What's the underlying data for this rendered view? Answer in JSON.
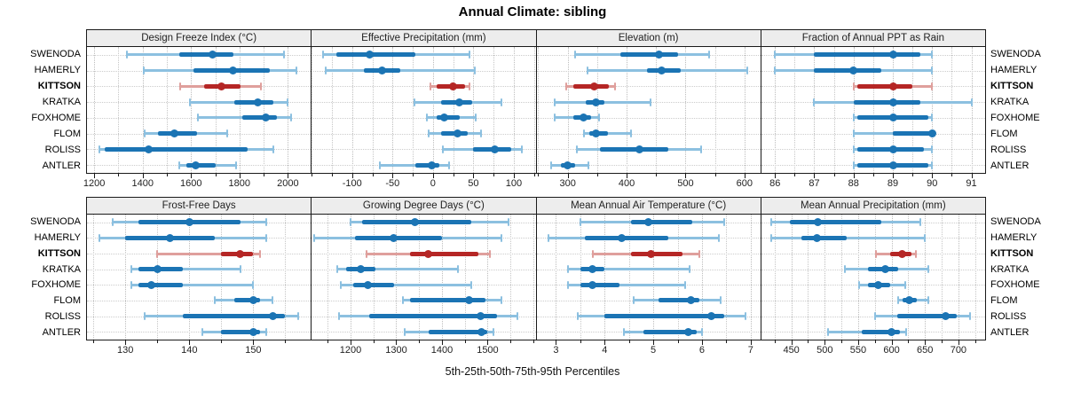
{
  "title": "Annual Climate: sibling",
  "caption": "5th-25th-50th-75th-95th Percentiles",
  "stations": [
    "SWENODA",
    "HAMERLY",
    "KITTSON",
    "KRATKA",
    "FOXHOME",
    "FLOM",
    "ROLISS",
    "ANTLER"
  ],
  "highlighted_station": "KITTSON",
  "colors": {
    "series_normal": "#1b74b4",
    "series_normal_light": "#8cc0e0",
    "series_highlight": "#b52625",
    "series_highlight_light": "#df9f9c",
    "panel_header_bg": "#ededed",
    "panel_border": "#1a1a1a",
    "gridline": "#c6c6c6"
  },
  "chart_data": [
    {
      "type": "scatter",
      "variant": "dot-whisker-percentiles",
      "row": 1,
      "title": "Design Freeze Index (°C)",
      "xlim": [
        1170,
        2095
      ],
      "major_ticks": [
        1200,
        1400,
        1600,
        1800,
        2000
      ],
      "minor_step": 100,
      "percentiles": [
        "5th",
        "25th",
        "50th",
        "75th",
        "95th"
      ],
      "series": [
        {
          "station": "SWENODA",
          "values": [
            1335,
            1550,
            1690,
            1775,
            1985
          ]
        },
        {
          "station": "HAMERLY",
          "values": [
            1405,
            1610,
            1775,
            1925,
            2035
          ]
        },
        {
          "station": "KITTSON",
          "values": [
            1555,
            1655,
            1725,
            1805,
            1890
          ]
        },
        {
          "station": "KRATKA",
          "values": [
            1595,
            1780,
            1875,
            1940,
            2000
          ]
        },
        {
          "station": "FOXHOME",
          "values": [
            1630,
            1810,
            1910,
            1955,
            2015
          ]
        },
        {
          "station": "FLOM",
          "values": [
            1410,
            1465,
            1530,
            1625,
            1750
          ]
        },
        {
          "station": "ROLISS",
          "values": [
            1222,
            1245,
            1425,
            1832,
            1940
          ]
        },
        {
          "station": "ANTLER",
          "values": [
            1550,
            1580,
            1620,
            1700,
            1785
          ]
        }
      ]
    },
    {
      "type": "scatter",
      "variant": "dot-whisker-percentiles",
      "row": 1,
      "title": "Effective Precipitation (mm)",
      "xlim": [
        -150,
        127
      ],
      "major_ticks": [
        -100,
        -50,
        0,
        50,
        100
      ],
      "minor_step": 25,
      "percentiles": [
        "5th",
        "25th",
        "50th",
        "75th",
        "95th"
      ],
      "series": [
        {
          "station": "SWENODA",
          "values": [
            -136,
            -120,
            -78,
            -22,
            45
          ]
        },
        {
          "station": "HAMERLY",
          "values": [
            -133,
            -85,
            -63,
            -40,
            52
          ]
        },
        {
          "station": "KITTSON",
          "values": [
            -3,
            5,
            25,
            40,
            45
          ]
        },
        {
          "station": "KRATKA",
          "values": [
            -23,
            10,
            33,
            48,
            85
          ]
        },
        {
          "station": "FOXHOME",
          "values": [
            -7,
            5,
            14,
            33,
            53
          ]
        },
        {
          "station": "FLOM",
          "values": [
            -5,
            10,
            30,
            43,
            60
          ]
        },
        {
          "station": "ROLISS",
          "values": [
            12,
            50,
            77,
            97,
            110
          ]
        },
        {
          "station": "ANTLER",
          "values": [
            -66,
            -22,
            -2,
            8,
            20
          ]
        }
      ]
    },
    {
      "type": "scatter",
      "variant": "dot-whisker-percentiles",
      "row": 1,
      "title": "Elevation (m)",
      "xlim": [
        247,
        627
      ],
      "major_ticks": [
        300,
        400,
        500,
        600
      ],
      "minor_step": 50,
      "percentiles": [
        "5th",
        "25th",
        "50th",
        "75th",
        "95th"
      ],
      "series": [
        {
          "station": "SWENODA",
          "values": [
            312,
            390,
            455,
            487,
            540
          ]
        },
        {
          "station": "HAMERLY",
          "values": [
            333,
            435,
            460,
            492,
            605
          ]
        },
        {
          "station": "KITTSON",
          "values": [
            297,
            310,
            345,
            370,
            381
          ]
        },
        {
          "station": "KRATKA",
          "values": [
            278,
            330,
            348,
            362,
            440
          ]
        },
        {
          "station": "FOXHOME",
          "values": [
            278,
            310,
            327,
            340,
            353
          ]
        },
        {
          "station": "FLOM",
          "values": [
            327,
            337,
            348,
            368,
            408
          ]
        },
        {
          "station": "ROLISS",
          "values": [
            315,
            355,
            422,
            470,
            527
          ]
        },
        {
          "station": "ANTLER",
          "values": [
            272,
            288,
            300,
            313,
            335
          ]
        }
      ]
    },
    {
      "type": "scatter",
      "variant": "dot-whisker-percentiles",
      "row": 1,
      "title": "Fraction of Annual PPT as Rain",
      "xlim": [
        85.65,
        91.35
      ],
      "major_ticks": [
        86,
        87,
        88,
        89,
        90,
        91
      ],
      "minor_step": 0.5,
      "percentiles": [
        "5th",
        "25th",
        "50th",
        "75th",
        "95th"
      ],
      "series": [
        {
          "station": "SWENODA",
          "values": [
            86,
            87,
            89,
            89.7,
            90
          ]
        },
        {
          "station": "HAMERLY",
          "values": [
            86,
            87,
            88,
            88.7,
            90
          ]
        },
        {
          "station": "KITTSON",
          "values": [
            88,
            88.1,
            89,
            89.5,
            90
          ]
        },
        {
          "station": "KRATKA",
          "values": [
            87,
            88,
            89,
            89.7,
            91
          ]
        },
        {
          "station": "FOXHOME",
          "values": [
            88,
            88.1,
            89,
            89.9,
            90
          ]
        },
        {
          "station": "FLOM",
          "values": [
            88,
            89,
            90,
            90,
            90
          ]
        },
        {
          "station": "ROLISS",
          "values": [
            88,
            88.1,
            89,
            89.8,
            90
          ]
        },
        {
          "station": "ANTLER",
          "values": [
            88,
            88.1,
            89,
            89.9,
            90
          ]
        }
      ]
    },
    {
      "type": "scatter",
      "variant": "dot-whisker-percentiles",
      "row": 2,
      "title": "Frost-Free Days",
      "xlim": [
        124,
        159
      ],
      "major_ticks": [
        130,
        140,
        150
      ],
      "minor_step": 5,
      "percentiles": [
        "5th",
        "25th",
        "50th",
        "75th",
        "95th"
      ],
      "series": [
        {
          "station": "SWENODA",
          "values": [
            128,
            132,
            140,
            148,
            152
          ]
        },
        {
          "station": "HAMERLY",
          "values": [
            126,
            130,
            137,
            144,
            152
          ]
        },
        {
          "station": "KITTSON",
          "values": [
            135,
            145,
            148,
            150,
            151
          ]
        },
        {
          "station": "KRATKA",
          "values": [
            131,
            132,
            135,
            139,
            148
          ]
        },
        {
          "station": "FOXHOME",
          "values": [
            131,
            132,
            134,
            139,
            150
          ]
        },
        {
          "station": "FLOM",
          "values": [
            144,
            147,
            150,
            151,
            153
          ]
        },
        {
          "station": "ROLISS",
          "values": [
            133,
            139,
            153,
            155,
            157
          ]
        },
        {
          "station": "ANTLER",
          "values": [
            142,
            145,
            150,
            151,
            152
          ]
        }
      ]
    },
    {
      "type": "scatter",
      "variant": "dot-whisker-percentiles",
      "row": 2,
      "title": "Growing Degree Days (°C)",
      "xlim": [
        1115,
        1605
      ],
      "major_ticks": [
        1200,
        1300,
        1400,
        1500
      ],
      "minor_step": 50,
      "percentiles": [
        "5th",
        "25th",
        "50th",
        "75th",
        "95th"
      ],
      "series": [
        {
          "station": "SWENODA",
          "values": [
            1200,
            1225,
            1340,
            1465,
            1545
          ]
        },
        {
          "station": "HAMERLY",
          "values": [
            1120,
            1210,
            1295,
            1400,
            1530
          ]
        },
        {
          "station": "KITTSON",
          "values": [
            1235,
            1330,
            1370,
            1480,
            1505
          ]
        },
        {
          "station": "KRATKA",
          "values": [
            1170,
            1190,
            1222,
            1255,
            1435
          ]
        },
        {
          "station": "FOXHOME",
          "values": [
            1178,
            1205,
            1237,
            1295,
            1465
          ]
        },
        {
          "station": "FLOM",
          "values": [
            1315,
            1330,
            1460,
            1495,
            1530
          ]
        },
        {
          "station": "ROLISS",
          "values": [
            1175,
            1240,
            1485,
            1520,
            1565
          ]
        },
        {
          "station": "ANTLER",
          "values": [
            1318,
            1370,
            1487,
            1500,
            1512
          ]
        }
      ]
    },
    {
      "type": "scatter",
      "variant": "dot-whisker-percentiles",
      "row": 2,
      "title": "Mean Annual Air Temperature (°C)",
      "xlim": [
        2.6,
        7.2
      ],
      "major_ticks": [
        3,
        4,
        5,
        6,
        7
      ],
      "minor_step": 0.5,
      "percentiles": [
        "5th",
        "25th",
        "50th",
        "75th",
        "95th"
      ],
      "series": [
        {
          "station": "SWENODA",
          "values": [
            3.5,
            4.55,
            4.9,
            5.8,
            6.45
          ]
        },
        {
          "station": "HAMERLY",
          "values": [
            2.85,
            3.6,
            4.35,
            5.3,
            6.35
          ]
        },
        {
          "station": "KITTSON",
          "values": [
            3.75,
            4.55,
            4.95,
            5.6,
            5.95
          ]
        },
        {
          "station": "KRATKA",
          "values": [
            3.25,
            3.5,
            3.75,
            4.0,
            5.75
          ]
        },
        {
          "station": "FOXHOME",
          "values": [
            3.25,
            3.5,
            3.75,
            4.3,
            5.65
          ]
        },
        {
          "station": "FLOM",
          "values": [
            4.6,
            5.1,
            5.78,
            5.95,
            6.38
          ]
        },
        {
          "station": "ROLISS",
          "values": [
            3.45,
            4.0,
            6.2,
            6.45,
            6.9
          ]
        },
        {
          "station": "ANTLER",
          "values": [
            4.4,
            4.8,
            5.72,
            5.9,
            6.0
          ]
        }
      ]
    },
    {
      "type": "scatter",
      "variant": "dot-whisker-percentiles",
      "row": 2,
      "title": "Mean Annual Precipitation (mm)",
      "xlim": [
        405,
        740
      ],
      "major_ticks": [
        450,
        500,
        550,
        600,
        650,
        700
      ],
      "minor_step": 25,
      "percentiles": [
        "5th",
        "25th",
        "50th",
        "75th",
        "95th"
      ],
      "series": [
        {
          "station": "SWENODA",
          "values": [
            420,
            448,
            490,
            585,
            643
          ]
        },
        {
          "station": "HAMERLY",
          "values": [
            420,
            465,
            488,
            533,
            650
          ]
        },
        {
          "station": "KITTSON",
          "values": [
            577,
            598,
            616,
            630,
            637
          ]
        },
        {
          "station": "KRATKA",
          "values": [
            530,
            565,
            591,
            610,
            655
          ]
        },
        {
          "station": "FOXHOME",
          "values": [
            552,
            565,
            580,
            598,
            620
          ]
        },
        {
          "station": "FLOM",
          "values": [
            610,
            617,
            626,
            638,
            655
          ]
        },
        {
          "station": "ROLISS",
          "values": [
            575,
            608,
            681,
            697,
            717
          ]
        },
        {
          "station": "ANTLER",
          "values": [
            505,
            555,
            600,
            612,
            622
          ]
        }
      ]
    }
  ]
}
